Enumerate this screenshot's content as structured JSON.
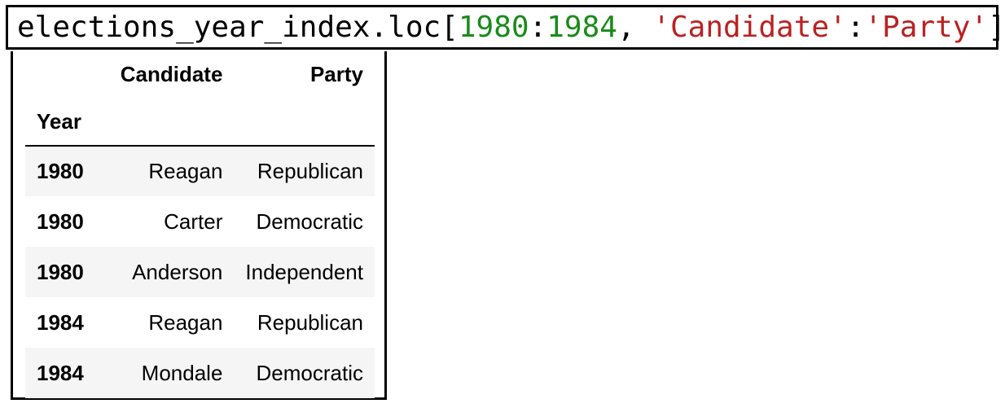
{
  "code_cell": {
    "tokens": [
      {
        "text": "elections_year_index.loc[",
        "kind": "plain"
      },
      {
        "text": "1980",
        "kind": "number"
      },
      {
        "text": ":",
        "kind": "plain"
      },
      {
        "text": "1984",
        "kind": "number"
      },
      {
        "text": ", ",
        "kind": "plain"
      },
      {
        "text": "'Candidate'",
        "kind": "string"
      },
      {
        "text": ":",
        "kind": "plain"
      },
      {
        "text": "'Party'",
        "kind": "string"
      },
      {
        "text": "]",
        "kind": "plain"
      }
    ]
  },
  "output_table": {
    "columns": [
      "Candidate",
      "Party"
    ],
    "index_name": "Year",
    "rows": [
      {
        "year": "1980",
        "candidate": "Reagan",
        "party": "Republican"
      },
      {
        "year": "1980",
        "candidate": "Carter",
        "party": "Democratic"
      },
      {
        "year": "1980",
        "candidate": "Anderson",
        "party": "Independent"
      },
      {
        "year": "1984",
        "candidate": "Reagan",
        "party": "Republican"
      },
      {
        "year": "1984",
        "candidate": "Mondale",
        "party": "Democratic"
      }
    ]
  },
  "colors": {
    "number": "#1a8a1a",
    "string": "#ba2121",
    "row_stripe": "#f5f5f5"
  }
}
